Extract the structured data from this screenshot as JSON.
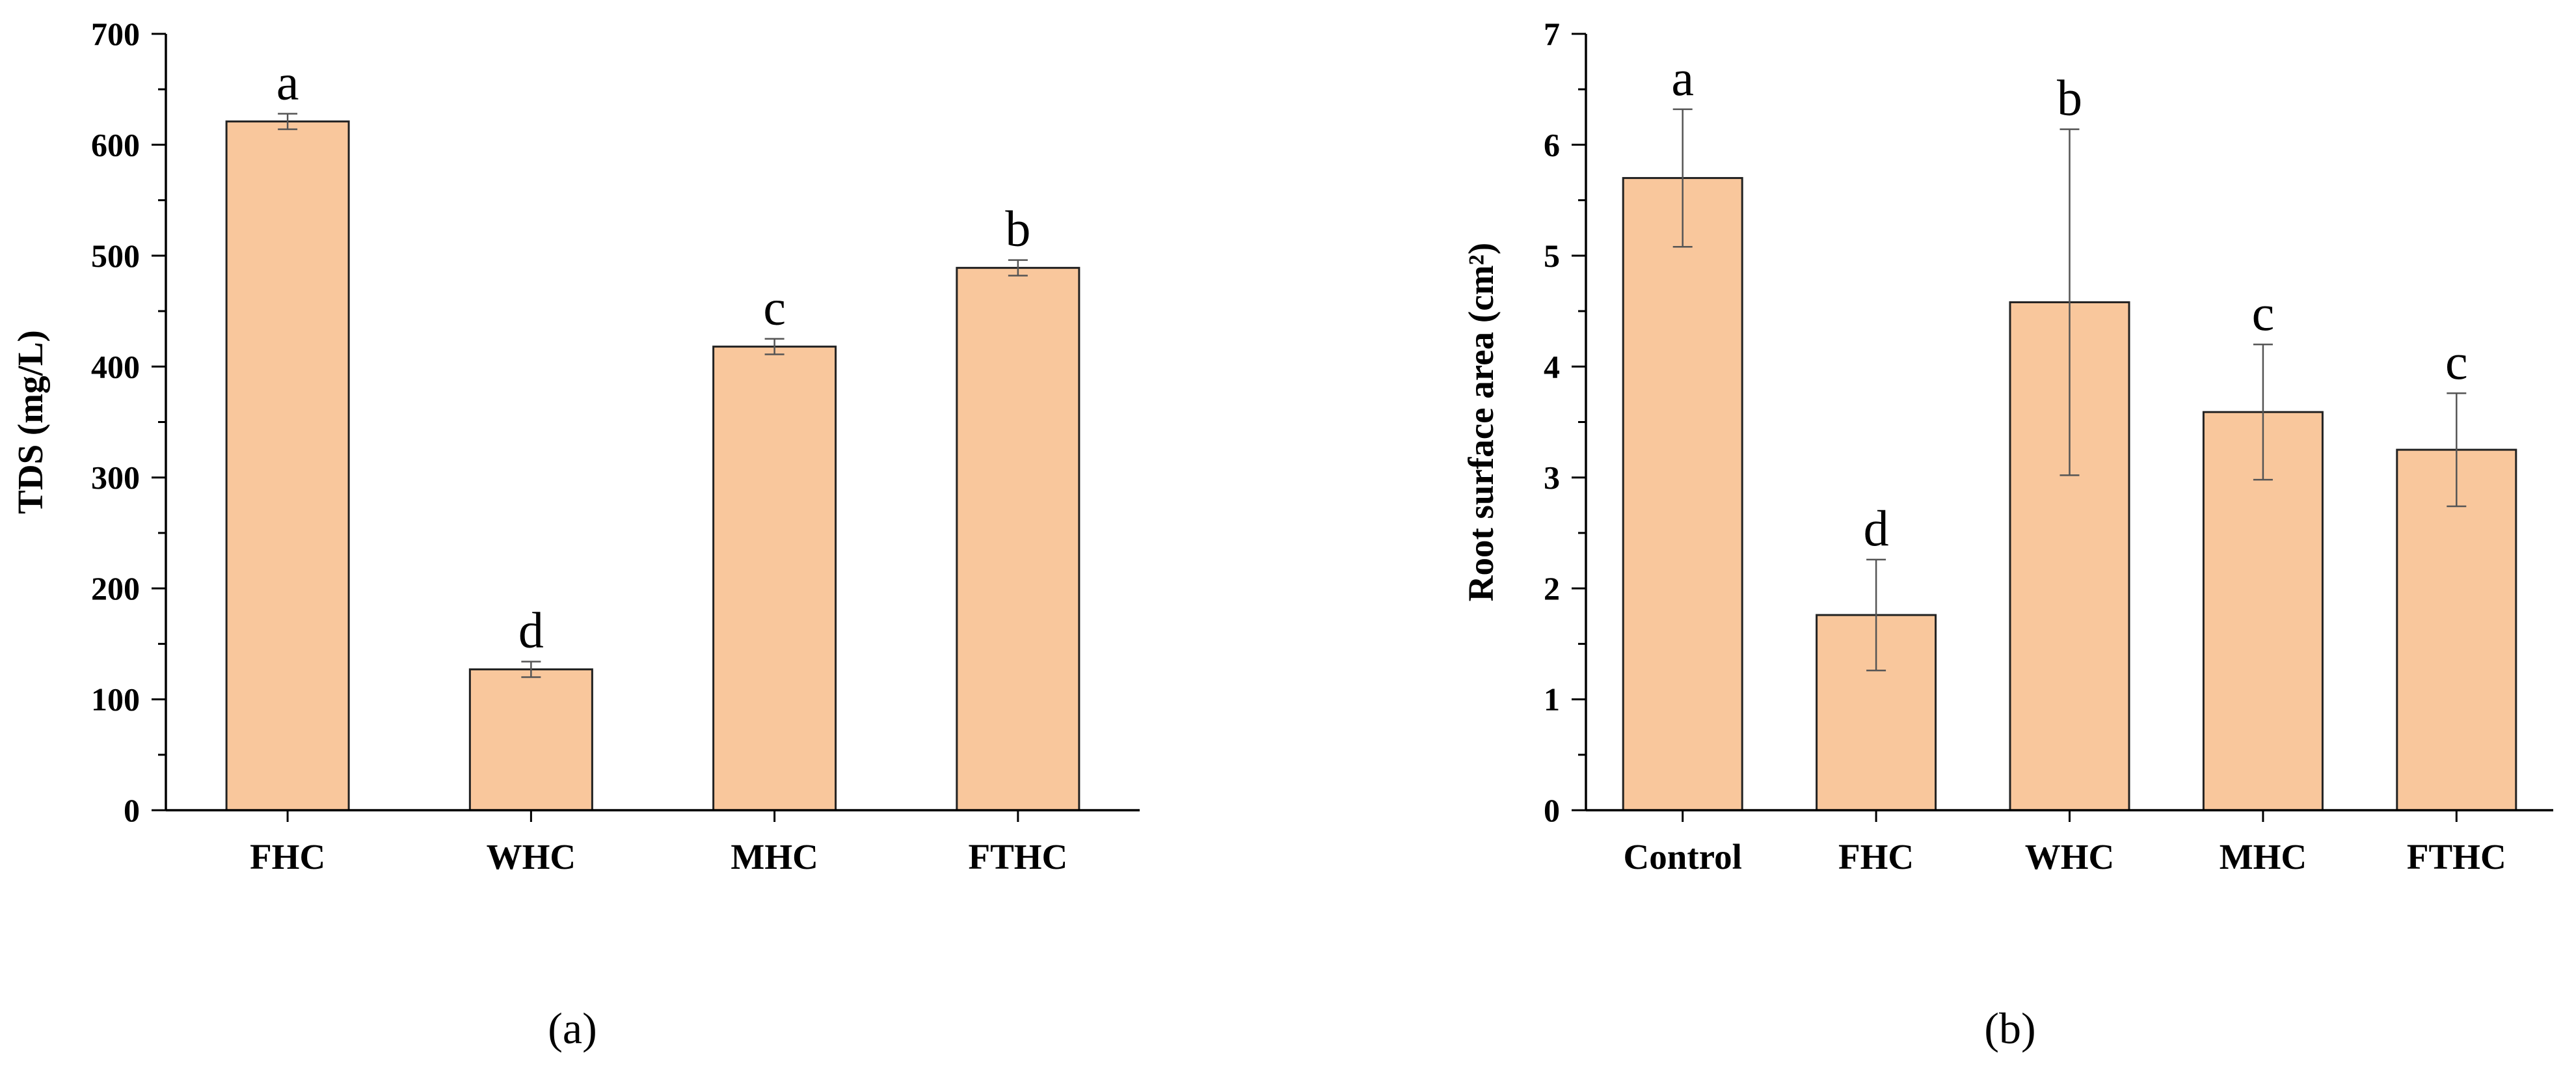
{
  "chart_data": [
    {
      "type": "bar",
      "panel_label": "(a)",
      "title": "",
      "xlabel": "",
      "ylabel": "TDS (mg/L)",
      "ylim": [
        0,
        700
      ],
      "yticks": [
        0,
        100,
        200,
        300,
        400,
        500,
        600,
        700
      ],
      "categories": [
        "FHC",
        "WHC",
        "MHC",
        "FTHC"
      ],
      "values": [
        621,
        127,
        418,
        489
      ],
      "errors": [
        7,
        7,
        7,
        7
      ],
      "significance": [
        "a",
        "d",
        "c",
        "b"
      ],
      "bar_color": "#f9c79c"
    },
    {
      "type": "bar",
      "panel_label": "(b)",
      "title": "",
      "xlabel": "",
      "ylabel": "Root surface area (cm²)",
      "ylim": [
        0,
        7
      ],
      "yticks": [
        0,
        1,
        2,
        3,
        4,
        5,
        6,
        7
      ],
      "categories": [
        "Control",
        "FHC",
        "WHC",
        "MHC",
        "FTHC"
      ],
      "values": [
        5.7,
        1.76,
        4.58,
        3.59,
        3.25
      ],
      "errors": [
        0.62,
        0.5,
        1.56,
        0.61,
        0.51
      ],
      "significance": [
        "a",
        "d",
        "b",
        "c",
        "c"
      ],
      "bar_color": "#f9c79c"
    }
  ]
}
